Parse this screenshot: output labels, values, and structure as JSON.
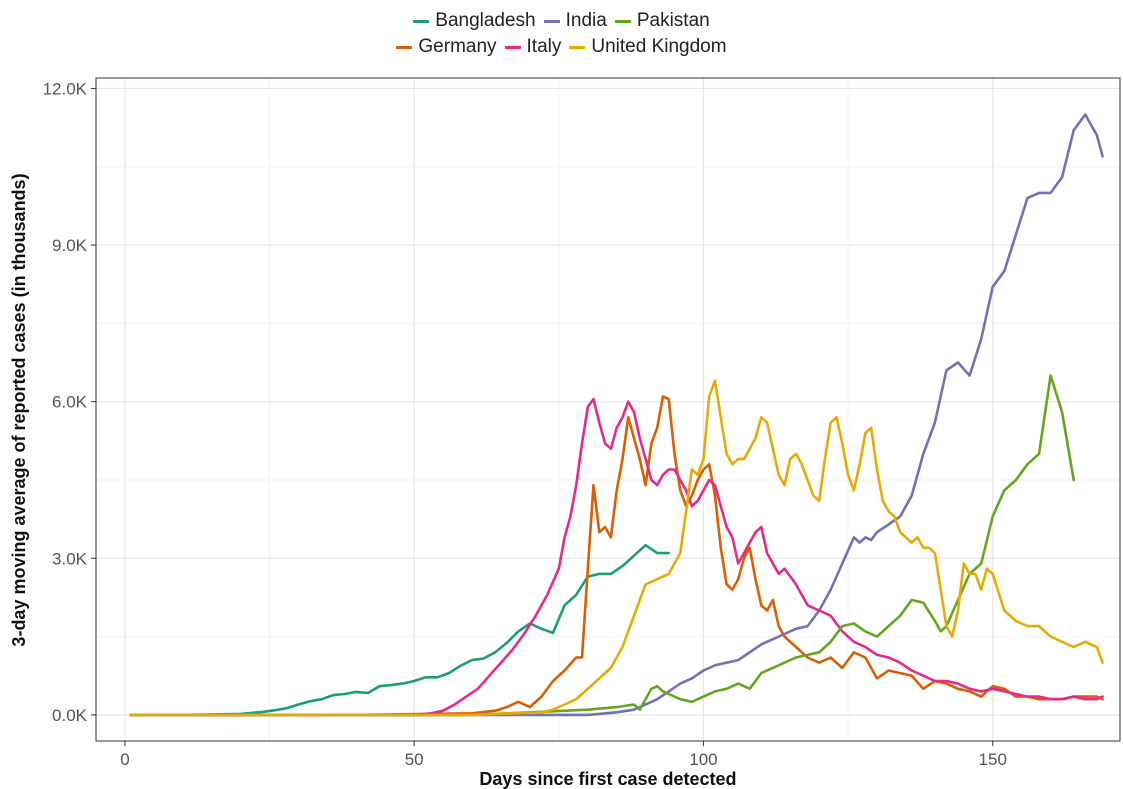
{
  "chart_data": {
    "type": "line",
    "xlabel": "Days since first case detected",
    "ylabel": "3-day moving average of reported cases (in thousands)",
    "xlim": [
      -5,
      172
    ],
    "ylim": [
      -500,
      12200
    ],
    "xticks": [
      0,
      50,
      100,
      150
    ],
    "yticks": [
      0,
      3000,
      6000,
      9000,
      12000
    ],
    "ytick_labels": [
      "0.0K",
      "3.0K",
      "6.0K",
      "9.0K",
      "12.0K"
    ],
    "grid": true,
    "legend_position": "top",
    "series": [
      {
        "name": "Bangladesh",
        "color": "#1b9e77",
        "x": [
          1,
          10,
          20,
          24,
          26,
          28,
          30,
          32,
          34,
          36,
          38,
          40,
          42,
          44,
          46,
          48,
          50,
          52,
          54,
          56,
          58,
          60,
          62,
          64,
          66,
          68,
          70,
          72,
          74,
          76,
          78,
          80,
          82,
          84,
          86,
          88,
          90,
          92,
          94
        ],
        "y": [
          0,
          0,
          20,
          60,
          90,
          130,
          200,
          260,
          300,
          380,
          400,
          440,
          420,
          550,
          570,
          600,
          650,
          720,
          720,
          800,
          940,
          1050,
          1080,
          1200,
          1380,
          1600,
          1750,
          1650,
          1570,
          2100,
          2300,
          2650,
          2700,
          2700,
          2850,
          3050,
          3250,
          3100,
          3100
        ]
      },
      {
        "name": "Germany",
        "color": "#d95f02",
        "x": [
          1,
          40,
          60,
          64,
          66,
          68,
          70,
          72,
          74,
          76,
          78,
          79,
          80,
          81,
          82,
          83,
          84,
          85,
          86,
          87,
          88,
          89,
          90,
          91,
          92,
          93,
          94,
          95,
          96,
          97,
          98,
          99,
          100,
          101,
          102,
          103,
          104,
          105,
          106,
          107,
          108,
          109,
          110,
          111,
          112,
          113,
          114,
          116,
          118,
          120,
          122,
          124,
          126,
          128,
          130,
          132,
          134,
          136,
          138,
          140,
          142,
          144,
          146,
          148,
          150,
          152,
          154,
          156,
          158,
          160,
          162,
          164,
          166,
          168,
          169
        ],
        "y": [
          0,
          0,
          30,
          80,
          150,
          250,
          150,
          350,
          650,
          850,
          1100,
          1100,
          2800,
          4400,
          3500,
          3600,
          3400,
          4300,
          4900,
          5700,
          5300,
          4900,
          4400,
          5200,
          5500,
          6100,
          6050,
          5000,
          4300,
          4000,
          4200,
          4500,
          4700,
          4800,
          4200,
          3200,
          2500,
          2400,
          2600,
          3000,
          3200,
          2600,
          2100,
          2000,
          2200,
          1700,
          1500,
          1300,
          1100,
          1000,
          1100,
          900,
          1200,
          1100,
          700,
          850,
          800,
          750,
          500,
          650,
          600,
          500,
          450,
          350,
          550,
          500,
          350,
          350,
          300,
          300,
          300,
          350,
          350,
          350,
          300
        ]
      },
      {
        "name": "India",
        "color": "#7570b3",
        "x": [
          1,
          50,
          80,
          85,
          88,
          90,
          92,
          94,
          96,
          98,
          100,
          102,
          104,
          106,
          108,
          110,
          112,
          114,
          116,
          118,
          120,
          122,
          124,
          126,
          127,
          128,
          129,
          130,
          132,
          134,
          136,
          138,
          140,
          142,
          144,
          146,
          148,
          150,
          152,
          154,
          156,
          158,
          160,
          162,
          164,
          166,
          168,
          169
        ],
        "y": [
          0,
          0,
          0,
          50,
          100,
          200,
          300,
          450,
          600,
          700,
          850,
          950,
          1000,
          1050,
          1200,
          1350,
          1450,
          1550,
          1650,
          1700,
          2000,
          2400,
          2900,
          3400,
          3300,
          3400,
          3350,
          3500,
          3650,
          3800,
          4200,
          5000,
          5600,
          6600,
          6750,
          6500,
          7200,
          8200,
          8500,
          9200,
          9900,
          10000,
          10000,
          10300,
          11200,
          11500,
          11100,
          10700
        ]
      },
      {
        "name": "Italy",
        "color": "#e7298a",
        "x": [
          1,
          50,
          53,
          55,
          57,
          59,
          61,
          63,
          65,
          67,
          69,
          71,
          73,
          75,
          76,
          77,
          78,
          79,
          80,
          81,
          82,
          83,
          84,
          85,
          86,
          87,
          88,
          89,
          90,
          91,
          92,
          93,
          94,
          95,
          96,
          97,
          98,
          99,
          100,
          101,
          102,
          103,
          104,
          105,
          106,
          107,
          108,
          109,
          110,
          111,
          112,
          113,
          114,
          116,
          118,
          120,
          122,
          124,
          126,
          128,
          130,
          132,
          134,
          136,
          138,
          140,
          142,
          144,
          146,
          148,
          150,
          152,
          154,
          156,
          158,
          160,
          162,
          164,
          166,
          168,
          169
        ],
        "y": [
          0,
          0,
          30,
          80,
          200,
          350,
          500,
          750,
          1000,
          1250,
          1550,
          1900,
          2300,
          2800,
          3400,
          3800,
          4400,
          5200,
          5900,
          6050,
          5600,
          5200,
          5100,
          5500,
          5700,
          6000,
          5800,
          5300,
          4900,
          4500,
          4400,
          4600,
          4700,
          4700,
          4500,
          4300,
          4000,
          4100,
          4300,
          4500,
          4400,
          4000,
          3600,
          3400,
          2900,
          3100,
          3300,
          3500,
          3600,
          3100,
          2900,
          2700,
          2800,
          2500,
          2100,
          2000,
          1900,
          1600,
          1400,
          1300,
          1150,
          1100,
          1000,
          850,
          750,
          650,
          650,
          600,
          500,
          450,
          500,
          450,
          400,
          350,
          350,
          300,
          300,
          350,
          300,
          300,
          350
        ]
      },
      {
        "name": "Pakistan",
        "color": "#66a61e",
        "x": [
          1,
          60,
          70,
          80,
          85,
          88,
          89,
          90,
          91,
          92,
          93,
          94,
          96,
          98,
          100,
          102,
          104,
          106,
          108,
          110,
          112,
          114,
          116,
          118,
          120,
          122,
          124,
          126,
          128,
          130,
          132,
          134,
          136,
          138,
          140,
          141,
          142,
          144,
          146,
          148,
          150,
          152,
          154,
          156,
          158,
          160,
          162,
          164
        ],
        "y": [
          0,
          0,
          50,
          100,
          150,
          200,
          100,
          300,
          500,
          550,
          450,
          400,
          300,
          250,
          350,
          450,
          500,
          600,
          500,
          800,
          900,
          1000,
          1100,
          1150,
          1200,
          1400,
          1700,
          1750,
          1600,
          1500,
          1700,
          1900,
          2200,
          2150,
          1800,
          1600,
          1700,
          2200,
          2700,
          2900,
          3800,
          4300,
          4500,
          4800,
          5000,
          6500,
          5800,
          4500
        ]
      },
      {
        "name": "United Kingdom",
        "color": "#e6ab02",
        "x": [
          1,
          60,
          72,
          74,
          76,
          78,
          80,
          82,
          84,
          86,
          88,
          90,
          92,
          94,
          96,
          98,
          99,
          100,
          101,
          102,
          103,
          104,
          105,
          106,
          107,
          108,
          109,
          110,
          111,
          112,
          113,
          114,
          115,
          116,
          117,
          118,
          119,
          120,
          121,
          122,
          123,
          124,
          125,
          126,
          127,
          128,
          129,
          130,
          131,
          132,
          133,
          134,
          135,
          136,
          137,
          138,
          139,
          140,
          141,
          142,
          143,
          144,
          145,
          146,
          147,
          148,
          149,
          150,
          152,
          154,
          156,
          158,
          160,
          162,
          164,
          166,
          168,
          169
        ],
        "y": [
          0,
          0,
          50,
          100,
          200,
          300,
          500,
          700,
          900,
          1300,
          1900,
          2500,
          2600,
          2700,
          3100,
          4700,
          4600,
          4900,
          6100,
          6400,
          5700,
          5000,
          4800,
          4900,
          4900,
          5100,
          5300,
          5700,
          5600,
          5100,
          4600,
          4400,
          4900,
          5000,
          4800,
          4500,
          4200,
          4100,
          4900,
          5600,
          5700,
          5200,
          4600,
          4300,
          4800,
          5400,
          5500,
          4700,
          4100,
          3900,
          3800,
          3500,
          3400,
          3300,
          3400,
          3200,
          3200,
          3100,
          2400,
          1700,
          1500,
          2000,
          2900,
          2700,
          2700,
          2400,
          2800,
          2700,
          2000,
          1800,
          1700,
          1700,
          1500,
          1400,
          1300,
          1400,
          1300,
          1000
        ]
      }
    ]
  }
}
